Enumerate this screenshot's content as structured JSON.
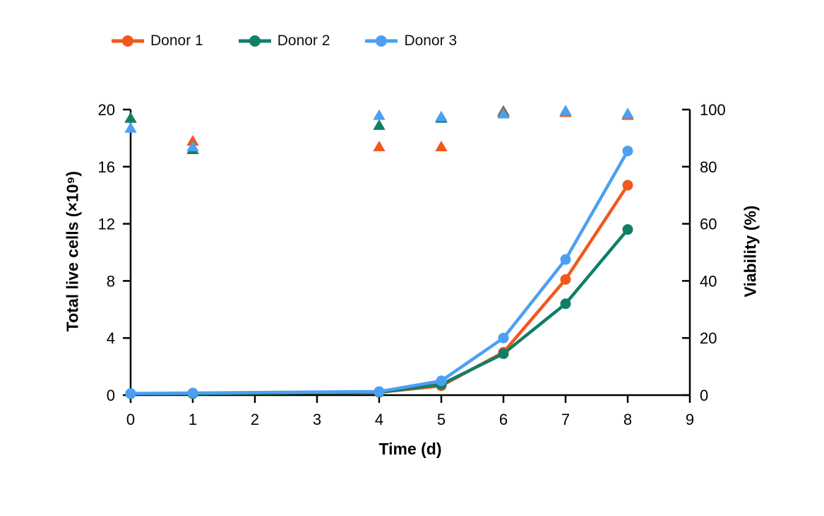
{
  "legend": {
    "position": "top-left",
    "items": [
      {
        "label": "Donor 1"
      },
      {
        "label": "Donor 2"
      },
      {
        "label": "Donor 3"
      }
    ]
  },
  "chart_data": {
    "type": "line",
    "description": "Cell expansion growth curves (lines with circle markers, left axis) and viability (triangle markers, right axis) for three donors",
    "x": [
      0,
      1,
      4,
      5,
      6,
      7,
      8
    ],
    "axes": {
      "x": {
        "title": "Time (d)",
        "min": 0,
        "max": 9,
        "ticks": [
          0,
          1,
          2,
          3,
          4,
          5,
          6,
          7,
          8,
          9
        ]
      },
      "y_left": {
        "title": "Total live cells (×10⁹)",
        "min": 0,
        "max": 20,
        "ticks": [
          0,
          4,
          8,
          12,
          16,
          20
        ]
      },
      "y_right": {
        "title": "Viability (%)",
        "min": 0,
        "max": 100,
        "ticks": [
          0,
          20,
          40,
          60,
          80,
          100
        ]
      }
    },
    "grid": false,
    "series": [
      {
        "name": "Donor 1",
        "color": "#F1581D",
        "line_marker": "circle",
        "scatter_marker": "triangle",
        "total_live_cells_e9": [
          0.1,
          0.1,
          0.2,
          0.65,
          3.0,
          8.1,
          14.7
        ],
        "viability_pct": [
          97,
          89,
          87,
          87,
          99.5,
          99,
          98
        ]
      },
      {
        "name": "Donor 2",
        "color": "#0F7F66",
        "line_marker": "circle",
        "scatter_marker": "triangle",
        "total_live_cells_e9": [
          0.1,
          0.1,
          0.2,
          0.75,
          2.9,
          6.4,
          11.6
        ],
        "viability_pct": [
          97,
          86,
          94.5,
          97,
          99,
          99.5,
          98.5
        ]
      },
      {
        "name": "Donor 3",
        "color": "#4D9FF2",
        "line_marker": "circle",
        "scatter_marker": "triangle",
        "total_live_cells_e9": [
          0.12,
          0.15,
          0.25,
          1.0,
          4.0,
          9.5,
          17.1
        ],
        "viability_pct": [
          93.5,
          87,
          98,
          97.5,
          98.5,
          99.5,
          98.5
        ]
      }
    ],
    "axis_color": "#000000",
    "tick_label_color": "#000000"
  }
}
